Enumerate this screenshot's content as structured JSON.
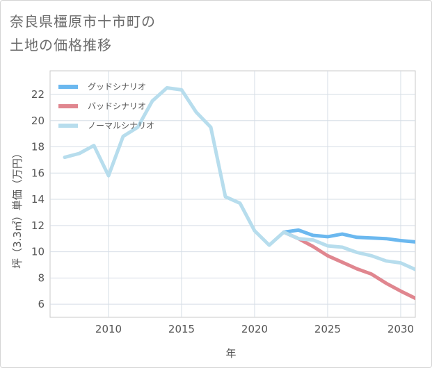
{
  "title_line1": "奈良県橿原市十市町の",
  "title_line2": "土地の価格推移",
  "chart_data": {
    "type": "line",
    "xlabel": "年",
    "ylabel": "坪（3.3㎡）単価（万円）",
    "xlim": [
      2006,
      2031
    ],
    "ylim": [
      5,
      23.8
    ],
    "x_ticks": [
      2010,
      2015,
      2020,
      2025,
      2030
    ],
    "y_ticks": [
      6,
      8,
      10,
      12,
      14,
      16,
      18,
      20,
      22
    ],
    "grid": true,
    "legend_position": "top-left",
    "series": [
      {
        "name": "グッドシナリオ",
        "color": "#6bb8ef",
        "x": [
          2022,
          2023,
          2024,
          2025,
          2026,
          2027,
          2028,
          2029,
          2030,
          2031
        ],
        "y": [
          11.5,
          11.65,
          11.25,
          11.15,
          11.35,
          11.1,
          11.05,
          11.0,
          10.85,
          10.75
        ]
      },
      {
        "name": "バッドシナリオ",
        "color": "#e0868f",
        "x": [
          2022,
          2023,
          2024,
          2025,
          2026,
          2027,
          2028,
          2029,
          2030,
          2031
        ],
        "y": [
          11.5,
          11.0,
          10.4,
          9.7,
          9.2,
          8.7,
          8.3,
          7.6,
          7.0,
          6.45
        ]
      },
      {
        "name": "ノーマルシナリオ",
        "color": "#b7dded",
        "x": [
          2007,
          2008,
          2009,
          2010,
          2011,
          2012,
          2013,
          2014,
          2015,
          2016,
          2017,
          2018,
          2019,
          2020,
          2021,
          2022,
          2023,
          2024,
          2025,
          2026,
          2027,
          2028,
          2029,
          2030,
          2031
        ],
        "y": [
          17.2,
          17.5,
          18.1,
          15.8,
          18.8,
          19.5,
          21.5,
          22.5,
          22.35,
          20.65,
          19.5,
          14.2,
          13.7,
          11.6,
          10.5,
          11.5,
          11.0,
          10.9,
          10.45,
          10.35,
          9.95,
          9.7,
          9.3,
          9.15,
          8.65
        ]
      }
    ]
  }
}
